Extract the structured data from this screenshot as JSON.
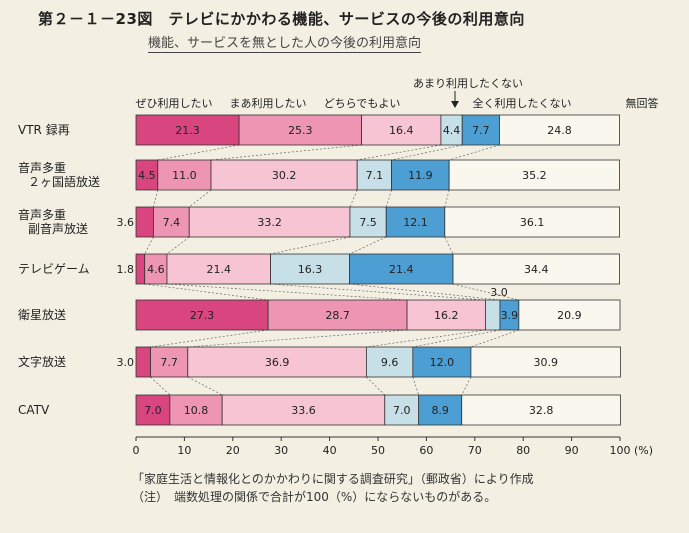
{
  "title": "第２－１－23図　テレビにかかわる機能、サービスの今後の利用意向",
  "subtitle": "機能、サービスを無とした人の今後の利用意向",
  "source_note": "「家庭生活と情報化とのかかわりに関する調査研究」（郵政省）により作成",
  "footnote": "（注）　端数処理の関係で合計が100（%）にならないものがある。",
  "chart_data": {
    "type": "bar",
    "orientation": "horizontal",
    "stacked": true,
    "categories": [
      [
        "VTR 録再"
      ],
      [
        "音声多重",
        "２ヶ国語放送"
      ],
      [
        "音声多重",
        "副音声放送"
      ],
      [
        "テレビゲーム"
      ],
      [
        "衛星放送"
      ],
      [
        "文字放送"
      ],
      [
        "CATV"
      ]
    ],
    "series": [
      {
        "name": "ぜひ利用したい",
        "color": "#d9457f",
        "values": [
          21.3,
          4.5,
          3.6,
          1.8,
          27.3,
          3.0,
          7.0
        ]
      },
      {
        "name": "まあ利用したい",
        "color": "#ef95b4",
        "values": [
          25.3,
          11.0,
          7.4,
          4.6,
          28.7,
          7.7,
          10.8
        ]
      },
      {
        "name": "どちらでもよい",
        "color": "#f6c4d3",
        "values": [
          16.4,
          30.2,
          33.2,
          21.4,
          16.2,
          36.9,
          33.6
        ]
      },
      {
        "name": "あまり利用したくない",
        "color": "#c7e0e8",
        "values": [
          4.4,
          7.1,
          7.5,
          16.3,
          3.0,
          9.6,
          7.0
        ]
      },
      {
        "name": "全く利用したくない",
        "color": "#4d9fd3",
        "values": [
          7.7,
          11.9,
          12.1,
          21.4,
          3.9,
          12.0,
          8.9
        ]
      },
      {
        "name": "無回答",
        "color": "#faf8ee",
        "values": [
          24.8,
          35.2,
          36.1,
          34.4,
          20.9,
          30.9,
          32.8
        ]
      }
    ],
    "x_ticks": [
      0,
      10,
      20,
      30,
      40,
      50,
      60,
      70,
      80,
      90,
      100
    ],
    "x_unit": "(%)",
    "xlim": [
      0,
      100
    ]
  }
}
